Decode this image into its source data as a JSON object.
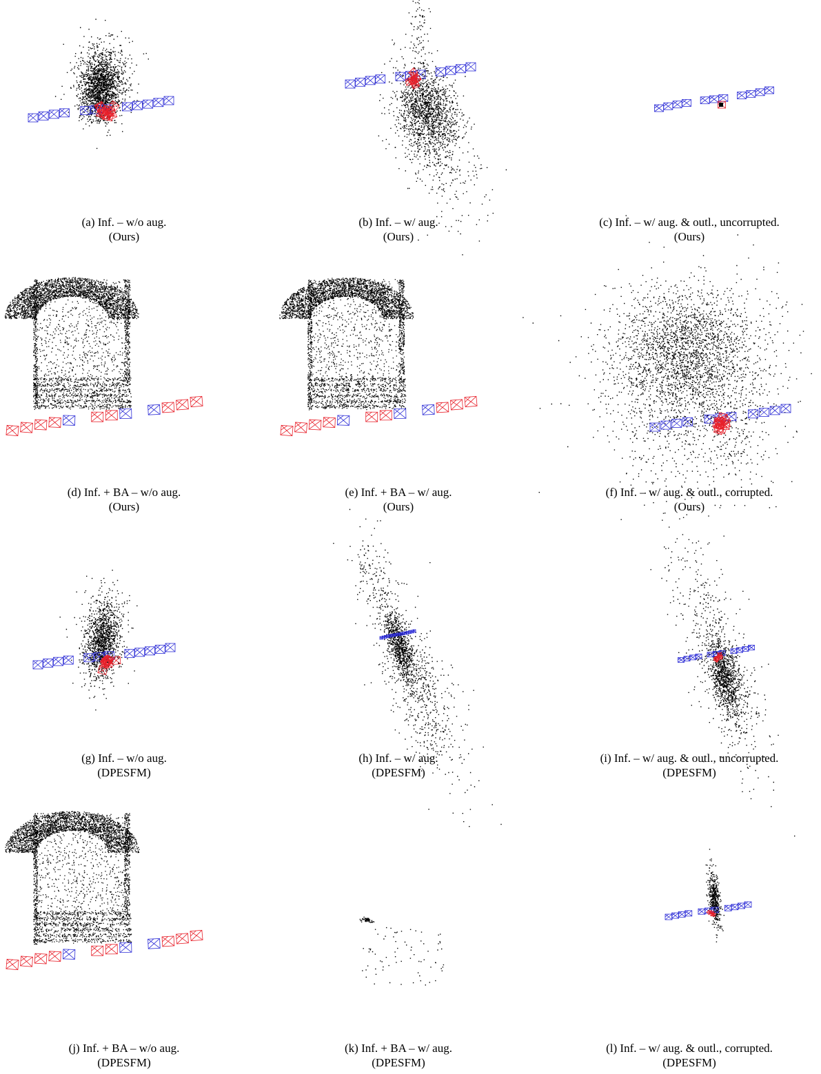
{
  "figure": {
    "panels": [
      {
        "id": "a",
        "caption": "(a) Inf. – w/o aug.",
        "method": "(Ours)"
      },
      {
        "id": "b",
        "caption": "(b) Inf. – w/ aug.",
        "method": "(Ours)"
      },
      {
        "id": "c",
        "caption": "(c) Inf. – w/ aug. & outl., uncorrupted.",
        "method": "(Ours)"
      },
      {
        "id": "d",
        "caption": "(d) Inf. + BA – w/o aug.",
        "method": "(Ours)"
      },
      {
        "id": "e",
        "caption": "(e) Inf. + BA – w/ aug.",
        "method": "(Ours)"
      },
      {
        "id": "f",
        "caption": "(f) Inf. – w/ aug. & outl., corrupted.",
        "method": "(Ours)"
      },
      {
        "id": "g",
        "caption": "(g) Inf. – w/o aug.",
        "method": "(DPESFM)"
      },
      {
        "id": "h",
        "caption": "(h) Inf. – w/ aug.",
        "method": "(DPESFM)"
      },
      {
        "id": "i",
        "caption": "(i) Inf. – w/ aug. & outl., uncorrupted.",
        "method": "(DPESFM)"
      },
      {
        "id": "j",
        "caption": "(j) Inf. + BA – w/o aug.",
        "method": "(DPESFM)"
      },
      {
        "id": "k",
        "caption": "(k) Inf. + BA – w/ aug.",
        "method": "(DPESFM)"
      },
      {
        "id": "l",
        "caption": "(l) Inf. – w/ aug. & outl., corrupted.",
        "method": "(DPESFM)"
      }
    ]
  },
  "colors": {
    "points": "#000000",
    "camera_outlier": "#e8202a",
    "camera_inlier": "#2b2bd6"
  }
}
